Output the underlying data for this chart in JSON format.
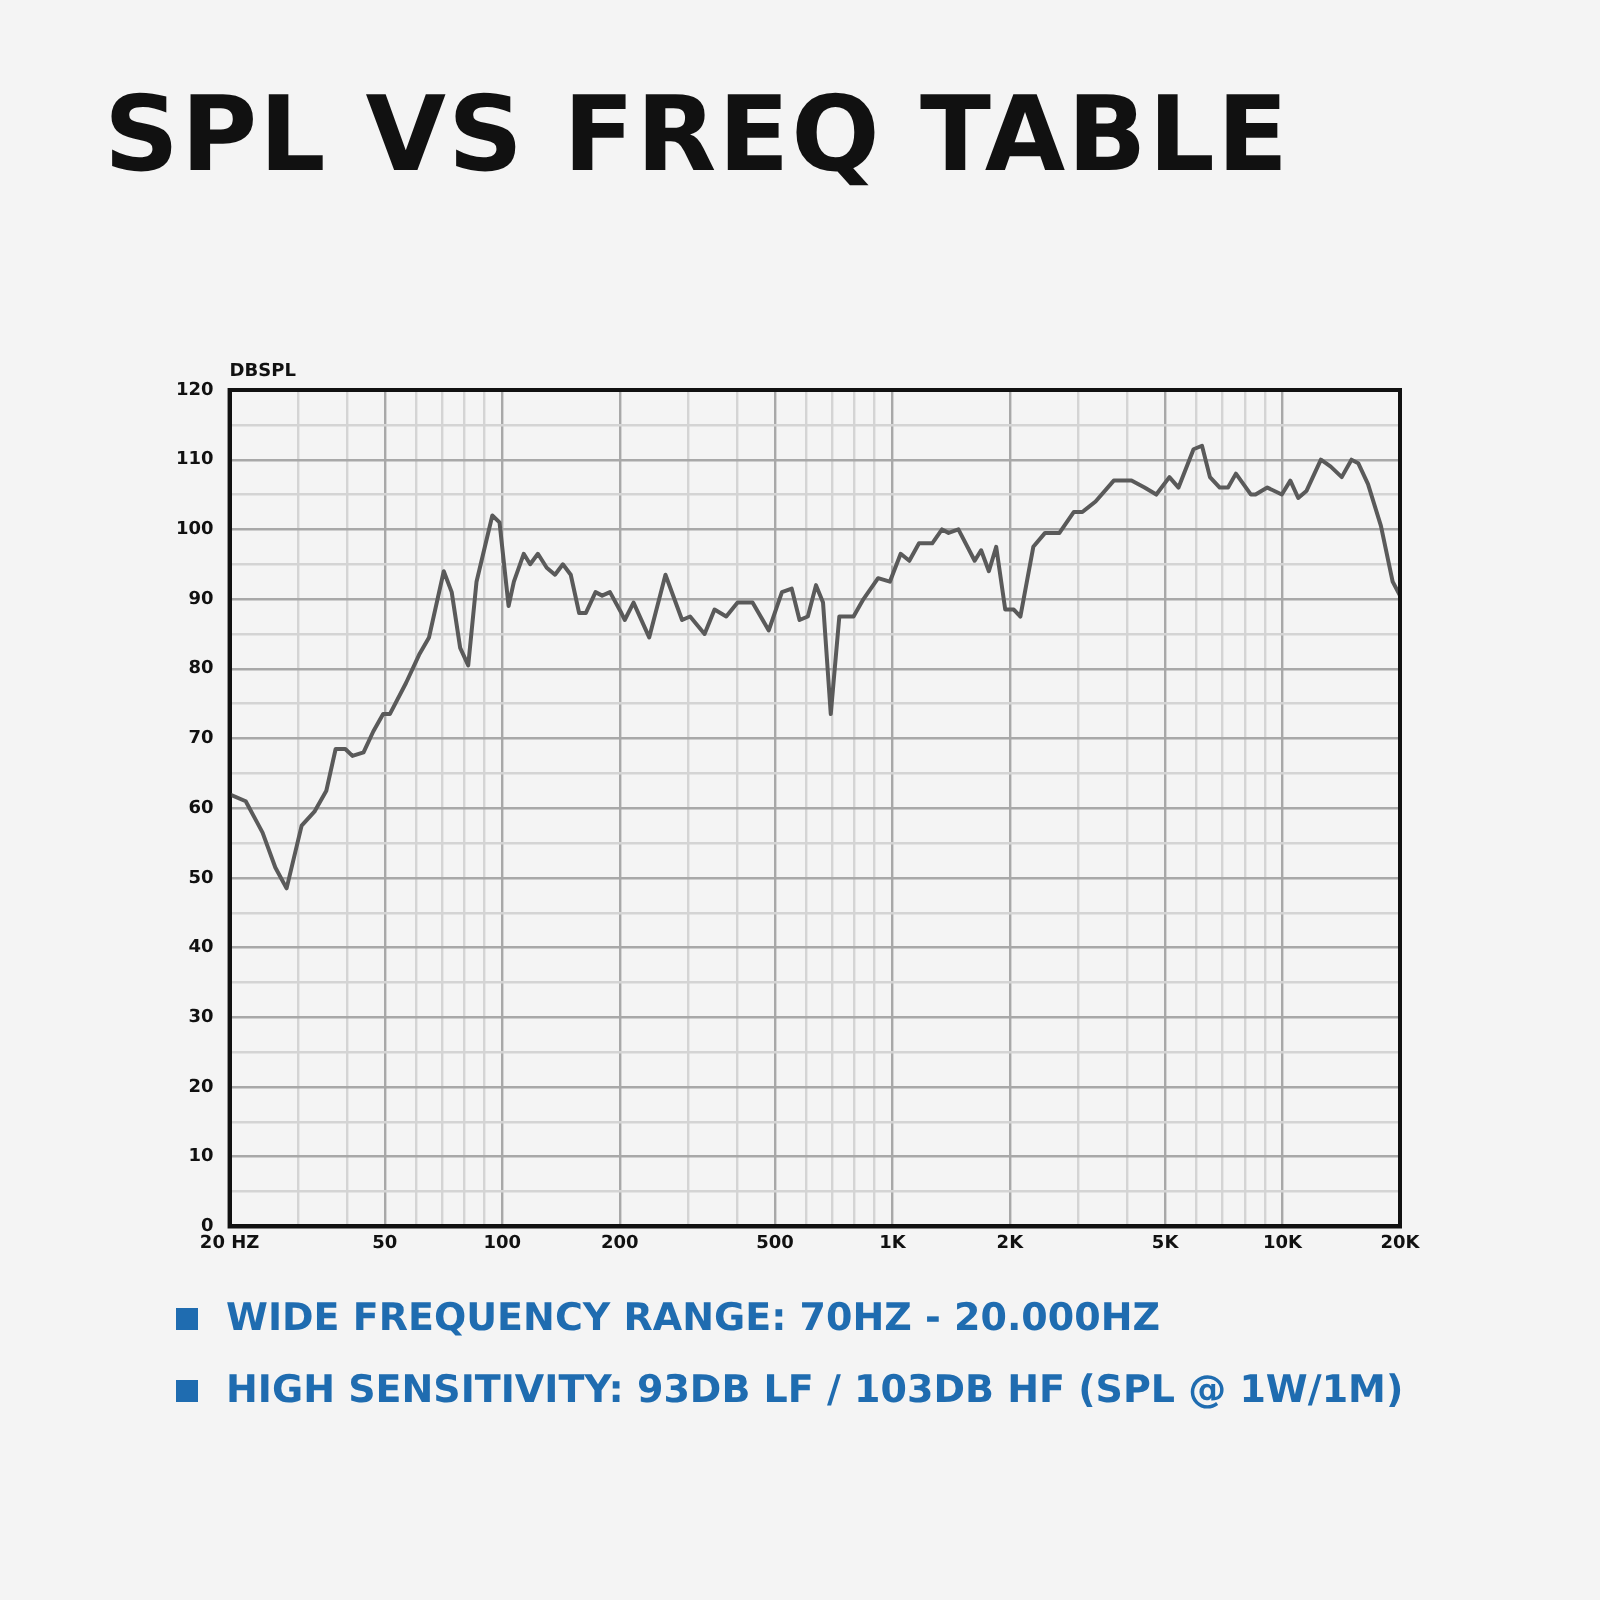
{
  "chart_data": {
    "type": "line",
    "title": "SPL VS FREQ TABLE",
    "ylabel": "DBSPL",
    "annotations": [
      "WIDE FREQUENCY RANGE: 70HZ - 20.000HZ",
      "HIGH SENSITIVITY: 93DB LF / 103DB HF (SPL @ 1W/1M)"
    ],
    "log": "x",
    "grid": true,
    "marker": "none",
    "line_style": "solid",
    "xlim": [
      20,
      20000
    ],
    "xticks": [
      {
        "value": 20,
        "label": "20 HZ"
      },
      {
        "value": 30,
        "label": null
      },
      {
        "value": 40,
        "label": null
      },
      50,
      {
        "value": 60,
        "label": null
      },
      {
        "value": 70,
        "label": null
      },
      {
        "value": 80,
        "label": null
      },
      {
        "value": 90,
        "label": null
      },
      100,
      200,
      {
        "value": 300,
        "label": null
      },
      {
        "value": 400,
        "label": null
      },
      500,
      {
        "value": 600,
        "label": null
      },
      {
        "value": 700,
        "label": null
      },
      {
        "value": 800,
        "label": null
      },
      {
        "value": 900,
        "label": null
      },
      {
        "value": 1000,
        "label": "1K"
      },
      {
        "value": 2000,
        "label": "2K"
      },
      {
        "value": 3000,
        "label": null
      },
      {
        "value": 4000,
        "label": null
      },
      {
        "value": 5000,
        "label": "5K"
      },
      {
        "value": 6000,
        "label": null
      },
      {
        "value": 7000,
        "label": null
      },
      {
        "value": 8000,
        "label": null
      },
      {
        "value": 9000,
        "label": null
      },
      {
        "value": 10000,
        "label": "10K"
      },
      {
        "value": 20000,
        "label": "20K"
      }
    ],
    "ylim": [
      0,
      120
    ],
    "yticks": [
      0,
      {
        "value": 5,
        "label": null
      },
      10,
      {
        "value": 15,
        "label": null
      },
      20,
      {
        "value": 25,
        "label": null
      },
      30,
      {
        "value": 35,
        "label": null
      },
      40,
      {
        "value": 45,
        "label": null
      },
      50,
      {
        "value": 55,
        "label": null
      },
      60,
      {
        "value": 65,
        "label": null
      },
      70,
      {
        "value": 75,
        "label": null
      },
      80,
      {
        "value": 85,
        "label": null
      },
      90,
      {
        "value": 95,
        "label": null
      },
      100,
      {
        "value": 105,
        "label": null
      },
      110,
      {
        "value": 115,
        "label": null
      },
      120
    ],
    "series": [
      {
        "color": "#5a5a5a",
        "x": [
          20,
          22,
          24.3,
          26.2,
          28,
          30.6,
          33,
          35.4,
          37.4,
          39.6,
          41.3,
          44.1,
          46.7,
          49.5,
          51.5,
          56.7,
          61.2,
          64.9,
          70.8,
          74.2,
          78,
          81.8,
          85.9,
          94.3,
          98.4,
          103.8,
          107.1,
          113.5,
          117.9,
          123.4,
          130,
          136.5,
          143,
          149.8,
          157.4,
          163.7,
          173.4,
          180.3,
          188.8,
          202,
          206,
          217,
          238,
          262,
          289,
          303,
          330,
          350,
          375,
          401,
          438,
          482,
          521,
          552,
          578,
          607,
          637,
          664,
          695,
          731,
          795,
          843,
          919,
          985,
          1050,
          1105,
          1170,
          1265,
          1340,
          1393,
          1476,
          1625,
          1688,
          1767,
          1845,
          1946,
          2047,
          2128,
          2297,
          2462,
          2680,
          2918,
          3068,
          3317,
          3693,
          4100,
          4428,
          4746,
          5128,
          5412,
          5913,
          6216,
          6515,
          6902,
          7250,
          7594,
          8299,
          8525,
          9140,
          9956,
          10470,
          10970,
          11510,
          12540,
          13290,
          14180,
          15020,
          15630,
          16560,
          17870,
          19150,
          20000
        ],
        "values": [
          62,
          61,
          56.5,
          51.5,
          48.5,
          57.5,
          59.5,
          62.5,
          68.5,
          68.5,
          67.5,
          68,
          71,
          73.5,
          73.5,
          78,
          82,
          84.5,
          94,
          91,
          83,
          80.5,
          92.5,
          102,
          101,
          89,
          92.5,
          96.5,
          95,
          96.5,
          94.5,
          93.5,
          95,
          93.5,
          88,
          88,
          91,
          90.5,
          91,
          88,
          87,
          89.5,
          84.5,
          93.5,
          87,
          87.5,
          85,
          88.5,
          87.5,
          89.5,
          89.5,
          85.5,
          91,
          91.5,
          87,
          87.5,
          92,
          89.5,
          73.5,
          87.5,
          87.5,
          90,
          93,
          92.5,
          96.5,
          95.5,
          98,
          98,
          100,
          99.5,
          100,
          95.5,
          97,
          94,
          97.5,
          88.5,
          88.5,
          87.5,
          97.5,
          99.5,
          99.5,
          102.5,
          102.5,
          104,
          107,
          107,
          106,
          105,
          107.5,
          106,
          111.5,
          112,
          107.5,
          106,
          106,
          108,
          105,
          105,
          106,
          105,
          107,
          104.5,
          105.5,
          110,
          109,
          107.5,
          110,
          109.5,
          106.5,
          100.5,
          92.5,
          90.5
        ]
      }
    ]
  }
}
